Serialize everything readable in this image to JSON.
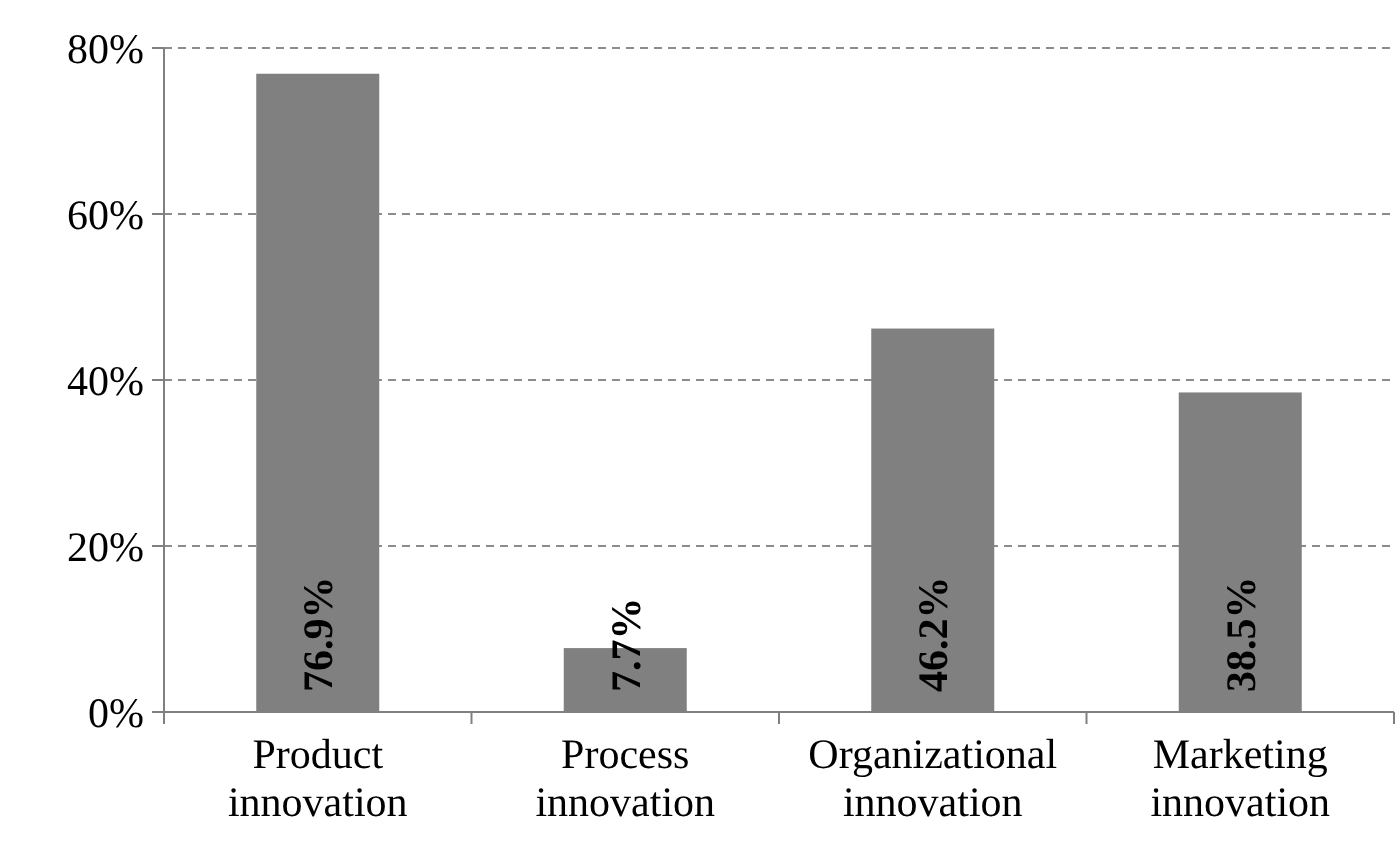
{
  "chart_data": {
    "type": "bar",
    "categories": [
      "Product innovation",
      "Process innovation",
      "Organizational innovation",
      "Marketing innovation"
    ],
    "values": [
      76.9,
      7.7,
      46.2,
      38.5
    ],
    "color": "#808080",
    "value_labels": [
      "76.9%",
      "7.7%",
      "46.2%",
      "38.5%"
    ],
    "ylim": [
      0,
      80
    ],
    "yticks": [
      {
        "value": 0,
        "label": "0%"
      },
      {
        "value": 20,
        "label": "20%"
      },
      {
        "value": 40,
        "label": "40%"
      },
      {
        "value": 60,
        "label": "60%"
      },
      {
        "value": 80,
        "label": "80%"
      }
    ],
    "grid": "y"
  }
}
